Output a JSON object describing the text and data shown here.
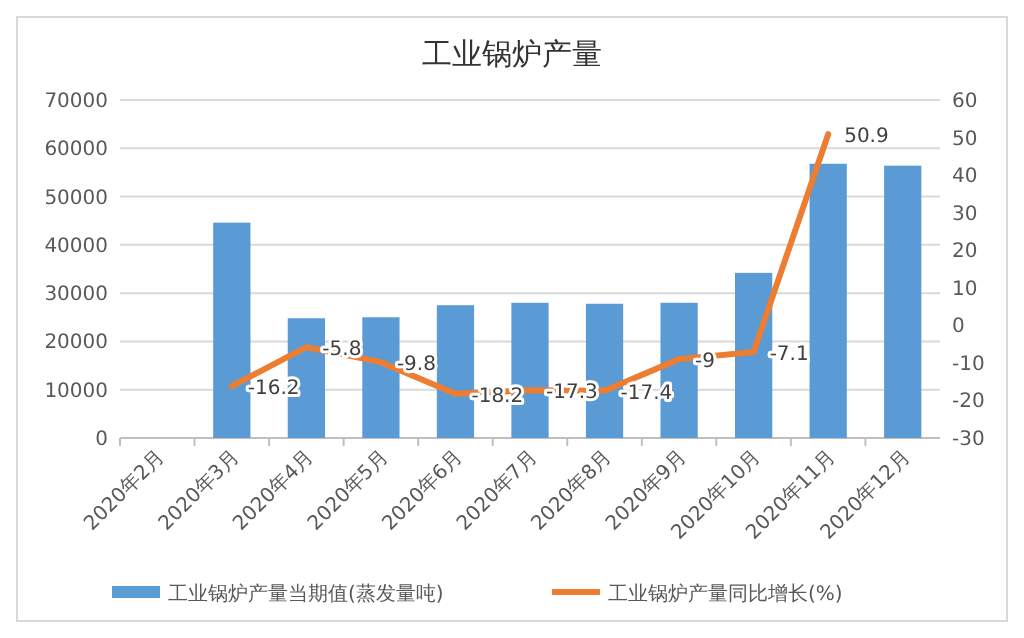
{
  "chart_data": {
    "type": "bar",
    "title": "工业锅炉产量",
    "categories": [
      "2020年2月",
      "2020年3月",
      "2020年4月",
      "2020年5月",
      "2020年6月",
      "2020年7月",
      "2020年8月",
      "2020年9月",
      "2020年10月",
      "2020年11月",
      "2020年12月"
    ],
    "series": [
      {
        "name": "工业锅炉产量当期值(蒸发量吨)",
        "color": "#5b9bd5",
        "values": [
          null,
          44600,
          24800,
          25000,
          27500,
          28000,
          27800,
          28000,
          34200,
          56800,
          56400
        ]
      },
      {
        "name": "工业锅炉产量同比增长(%)",
        "type": "line",
        "axis": "y2",
        "color": "#ed7d31",
        "values": [
          null,
          -16.2,
          -5.8,
          -9.8,
          -18.2,
          -17.3,
          -17.4,
          -9,
          -7.1,
          50.9,
          null
        ],
        "value_labels": [
          null,
          "-16.2",
          "-5.8",
          "-9.8",
          "-18.2",
          "-17.3",
          "-17.4",
          "-9",
          "-7.1",
          "50.9",
          null
        ]
      }
    ],
    "ylim": [
      0,
      70000
    ],
    "yticks": [
      0,
      10000,
      20000,
      30000,
      40000,
      50000,
      60000,
      70000
    ],
    "y2lim": [
      -30,
      60
    ],
    "y2ticks": [
      -30,
      -20,
      -10,
      0,
      10,
      20,
      30,
      40,
      50,
      60
    ],
    "grid": "y",
    "legend": "bottom"
  }
}
